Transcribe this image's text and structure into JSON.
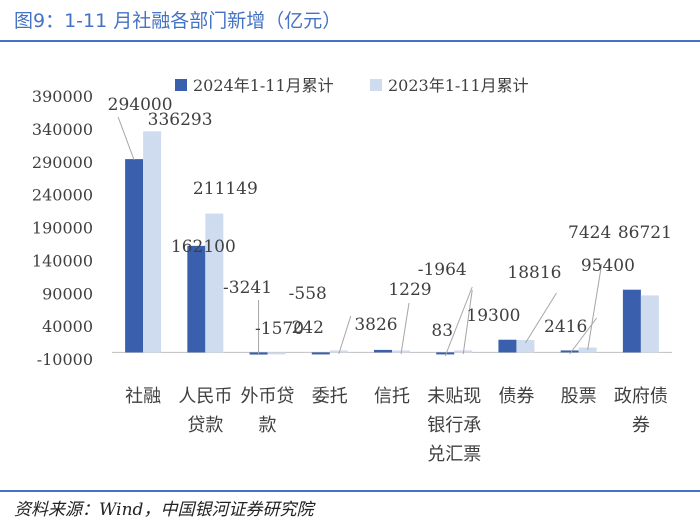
{
  "title": "图9：1-11 月社融各部门新增（亿元）",
  "source": "资料来源：Wind，中国银河证券研究院",
  "chart_data": {
    "type": "bar",
    "categories": [
      [
        "社融"
      ],
      [
        "人民币",
        "贷款"
      ],
      [
        "外币贷",
        "款"
      ],
      [
        "委托"
      ],
      [
        "信托"
      ],
      [
        "未贴现",
        "银行承",
        "兑汇票"
      ],
      [
        "债券"
      ],
      [
        "股票"
      ],
      [
        "政府债",
        "券"
      ]
    ],
    "series": [
      {
        "name": "2024年1-11月累计",
        "color": "#3a5fad",
        "values": [
          294000,
          162100,
          -3241,
          -558,
          3826,
          -1964,
          19300,
          2416,
          95400
        ]
      },
      {
        "name": "2023年1-11月累计",
        "color": "#cfdcf0",
        "values": [
          336293,
          211149,
          -1570,
          242,
          1229,
          83,
          18816,
          7424,
          86721
        ]
      }
    ],
    "yticks": [
      390000,
      340000,
      290000,
      240000,
      190000,
      140000,
      90000,
      40000,
      -10000
    ],
    "ylim": [
      -10000,
      390000
    ],
    "legend_position": "top-center",
    "grid": false
  }
}
